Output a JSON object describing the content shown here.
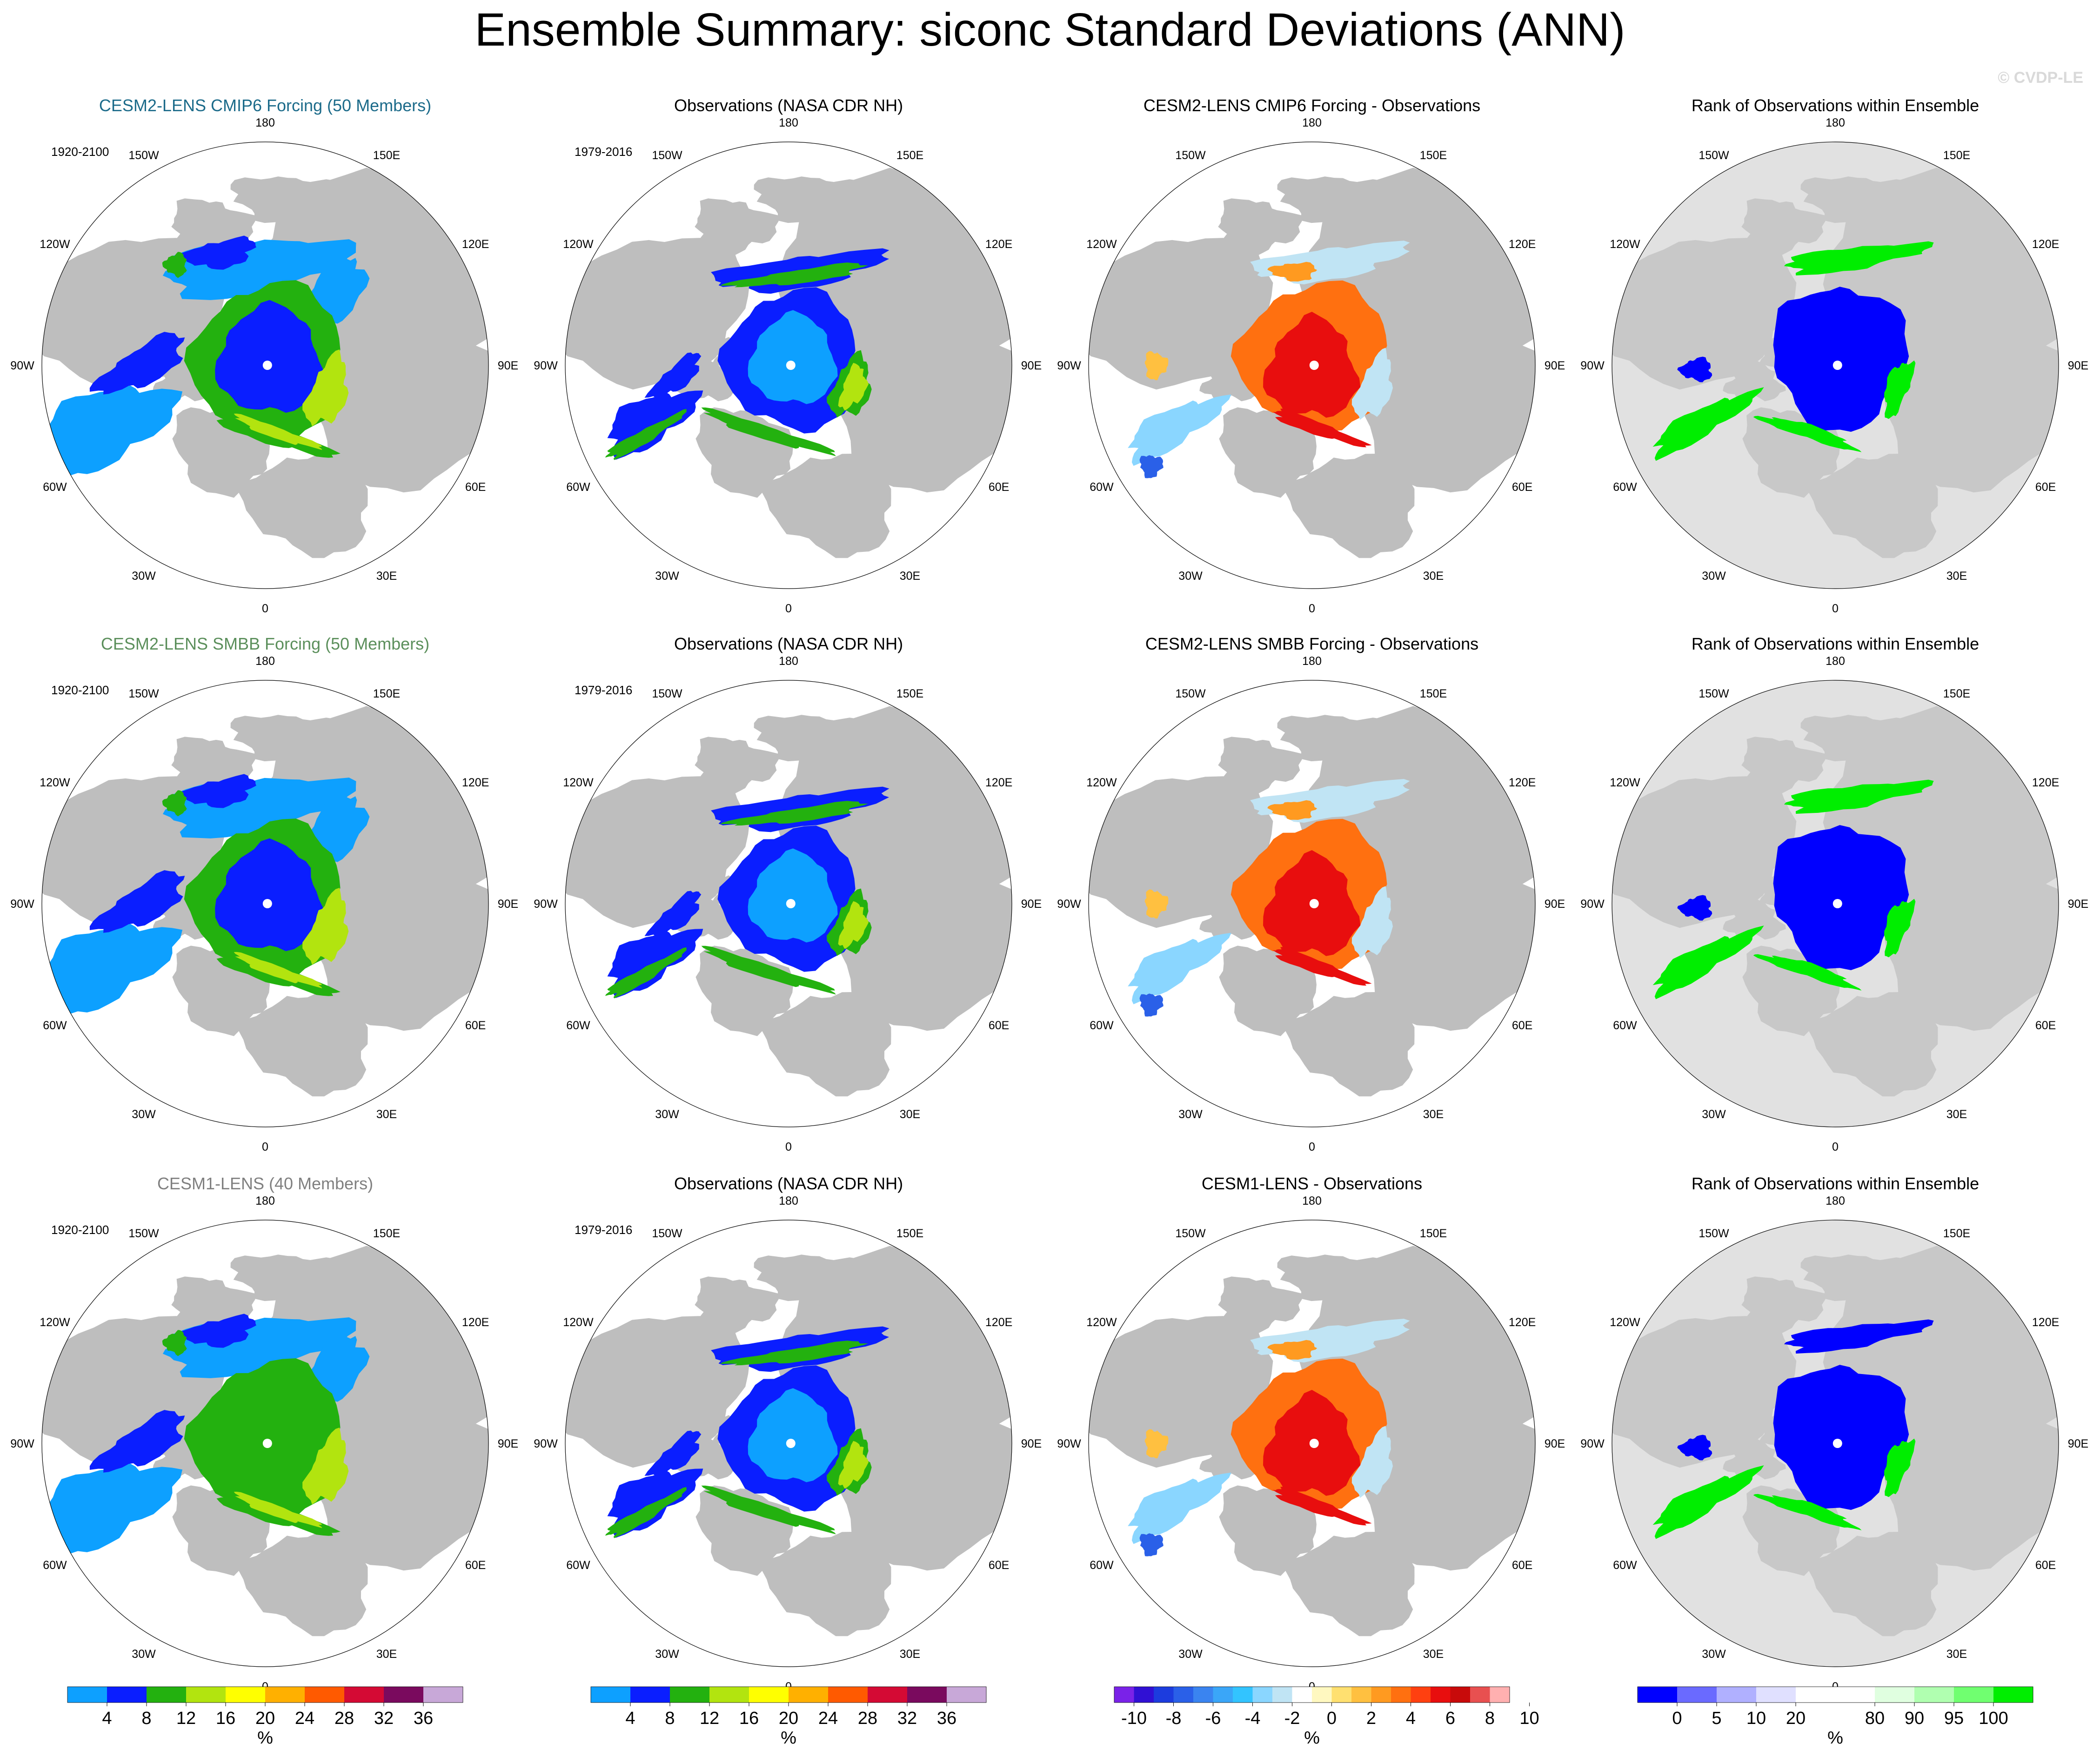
{
  "figure": {
    "title": "Ensemble Summary: siconc Standard Deviations (ANN)",
    "watermark": "© CVDP-LE"
  },
  "lon_labels": [
    "180",
    "150E",
    "120E",
    "90E",
    "60E",
    "30E",
    "0",
    "30W",
    "60W",
    "90W",
    "120W",
    "150W"
  ],
  "colors": {
    "land": "#bebebe",
    "rank_land": "#c8c8c8",
    "rank_bg": "#e1e1e1",
    "ocean": "#ffffff",
    "title_cmip6": "#1c6b8a",
    "title_smbb": "#5b8f5b",
    "title_cesm1": "#808080"
  },
  "rows": [
    {
      "panels": [
        {
          "title": "CESM2-LENS CMIP6 Forcing (50 Members)",
          "title_color": "#1c6b8a",
          "period": "1920-2100",
          "kind": "sd_model",
          "variant": "cmip6"
        },
        {
          "title": "Observations (NASA CDR NH)",
          "title_color": "#000000",
          "period": "1979-2016",
          "kind": "sd_obs",
          "variant": "obs"
        },
        {
          "title": "CESM2-LENS CMIP6 Forcing - Observations",
          "title_color": "#000000",
          "period": "",
          "kind": "diff",
          "variant": "cmip6"
        },
        {
          "title": "Rank of Observations within Ensemble",
          "title_color": "#000000",
          "period": "",
          "kind": "rank",
          "variant": "cmip6"
        }
      ]
    },
    {
      "panels": [
        {
          "title": "CESM2-LENS SMBB Forcing (50 Members)",
          "title_color": "#5b8f5b",
          "period": "1920-2100",
          "kind": "sd_model",
          "variant": "smbb"
        },
        {
          "title": "Observations (NASA CDR NH)",
          "title_color": "#000000",
          "period": "1979-2016",
          "kind": "sd_obs",
          "variant": "obs"
        },
        {
          "title": "CESM2-LENS SMBB Forcing - Observations",
          "title_color": "#000000",
          "period": "",
          "kind": "diff",
          "variant": "smbb"
        },
        {
          "title": "Rank of Observations within Ensemble",
          "title_color": "#000000",
          "period": "",
          "kind": "rank",
          "variant": "smbb"
        }
      ]
    },
    {
      "panels": [
        {
          "title": "CESM1-LENS (40 Members)",
          "title_color": "#808080",
          "period": "1920-2100",
          "kind": "sd_model",
          "variant": "cesm1"
        },
        {
          "title": "Observations (NASA CDR NH)",
          "title_color": "#000000",
          "period": "1979-2016",
          "kind": "sd_obs",
          "variant": "obs"
        },
        {
          "title": "CESM1-LENS - Observations",
          "title_color": "#000000",
          "period": "",
          "kind": "diff",
          "variant": "cesm1"
        },
        {
          "title": "Rank of Observations within Ensemble",
          "title_color": "#000000",
          "period": "",
          "kind": "rank",
          "variant": "cesm1"
        }
      ]
    }
  ],
  "colorbars": [
    {
      "name": "sd",
      "units": "%",
      "colors": [
        "#0da0ff",
        "#0a1eff",
        "#23b10f",
        "#b2e40f",
        "#ffff00",
        "#ffb000",
        "#ff5a00",
        "#d40a34",
        "#7a0a5e",
        "#c8a8d8"
      ],
      "tick_labels": [
        "4",
        "8",
        "12",
        "16",
        "20",
        "24",
        "28",
        "32",
        "36"
      ]
    },
    {
      "name": "sd_obs",
      "units": "%",
      "colors": [
        "#0da0ff",
        "#0a1eff",
        "#23b10f",
        "#b2e40f",
        "#ffff00",
        "#ffb000",
        "#ff5a00",
        "#d40a34",
        "#7a0a5e",
        "#c8a8d8"
      ],
      "tick_labels": [
        "4",
        "8",
        "12",
        "16",
        "20",
        "24",
        "28",
        "32",
        "36"
      ]
    },
    {
      "name": "diff",
      "units": "%",
      "colors": [
        "#7a22e8",
        "#3010d4",
        "#1c3cde",
        "#2a60e8",
        "#3a84f0",
        "#3aa6f8",
        "#32c4ff",
        "#8ad6ff",
        "#c0e4f4",
        "#ffffff",
        "#fff8c0",
        "#ffe070",
        "#ffc040",
        "#ff9a20",
        "#ff7010",
        "#ff4010",
        "#e80e0e",
        "#c80a0a",
        "#e85050",
        "#ffb0b0"
      ],
      "tick_labels": [
        "-10",
        "-8",
        "-6",
        "-4",
        "-2",
        "0",
        "2",
        "4",
        "6",
        "8",
        "10"
      ]
    },
    {
      "name": "rank",
      "units": "%",
      "colors": [
        "#0000ff",
        "#6a6aff",
        "#b0b0ff",
        "#e0e0ff",
        "#ffffff",
        "#ffffff",
        "#e0ffe0",
        "#b0ffb0",
        "#70ff70",
        "#00ee00"
      ],
      "tick_labels": [
        "0",
        "5",
        "10",
        "20",
        "80",
        "90",
        "95",
        "100"
      ],
      "tick_positions": [
        1,
        2,
        3,
        4,
        6,
        7,
        8,
        9
      ]
    }
  ]
}
